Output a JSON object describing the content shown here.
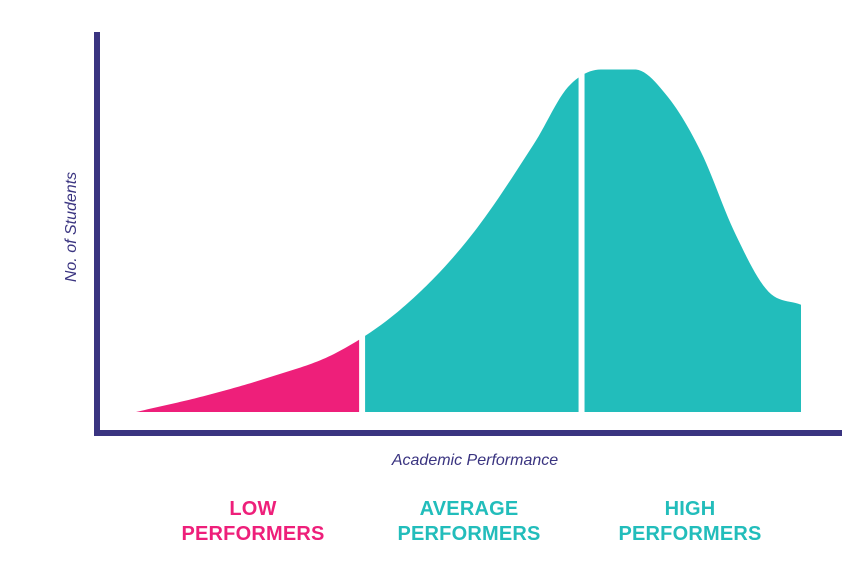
{
  "chart_data": {
    "type": "area",
    "title": "",
    "xlabel": "Academic Performance",
    "ylabel": "No. of Students",
    "grid": false,
    "legend": "none",
    "curve": {
      "x": [
        0,
        10,
        20,
        30,
        40,
        50,
        60,
        65,
        70,
        75,
        80,
        85,
        90,
        95,
        100
      ],
      "y": [
        0,
        4.5,
        10,
        17,
        30,
        50,
        78,
        94,
        99,
        99,
        91,
        75,
        52,
        35,
        31
      ]
    },
    "segments": [
      {
        "label": "LOW\nPERFORMERS",
        "x_range": [
          0,
          34
        ],
        "color": "#ee1f7a"
      },
      {
        "label": "AVERAGE\nPERFORMERS",
        "x_range": [
          34,
          67
        ],
        "color": "#22bdbb"
      },
      {
        "label": "HIGH\nPERFORMERS",
        "x_range": [
          67,
          100
        ],
        "color": "#22bdbb"
      }
    ],
    "axis_color": "#3a3480"
  },
  "labels": {
    "low": [
      "LOW",
      "PERFORMERS"
    ],
    "average": [
      "AVERAGE",
      "PERFORMERS"
    ],
    "high": [
      "HIGH",
      "PERFORMERS"
    ]
  }
}
